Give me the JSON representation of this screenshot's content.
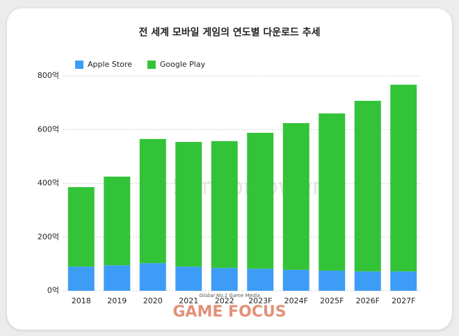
{
  "chart_data": {
    "type": "stacked-bar",
    "title": "전 세계 모바일 게임의 연도별 다운로드 추세",
    "categories": [
      "2018",
      "2019",
      "2020",
      "2021",
      "2022",
      "2023F",
      "2024F",
      "2025F",
      "2026F",
      "2027F"
    ],
    "series": [
      {
        "name": "Apple Store",
        "color": "#3d9cf5",
        "values": [
          90,
          95,
          103,
          90,
          85,
          82,
          78,
          75,
          72,
          72
        ]
      },
      {
        "name": "Google Play",
        "color": "#33c338",
        "values": [
          296,
          330,
          462,
          464,
          472,
          506,
          546,
          585,
          635,
          695
        ]
      }
    ],
    "ylim": [
      0,
      800
    ],
    "yticks": [
      {
        "value": 0,
        "label": "0억"
      },
      {
        "value": 200,
        "label": "200억"
      },
      {
        "value": 400,
        "label": "400억"
      },
      {
        "value": 600,
        "label": "600억"
      },
      {
        "value": 800,
        "label": "800억"
      }
    ],
    "grid": true,
    "watermark": "SensorTower",
    "logo": {
      "tagline": "Global No.1 Game Media",
      "name": "GAME FOCUS"
    }
  }
}
